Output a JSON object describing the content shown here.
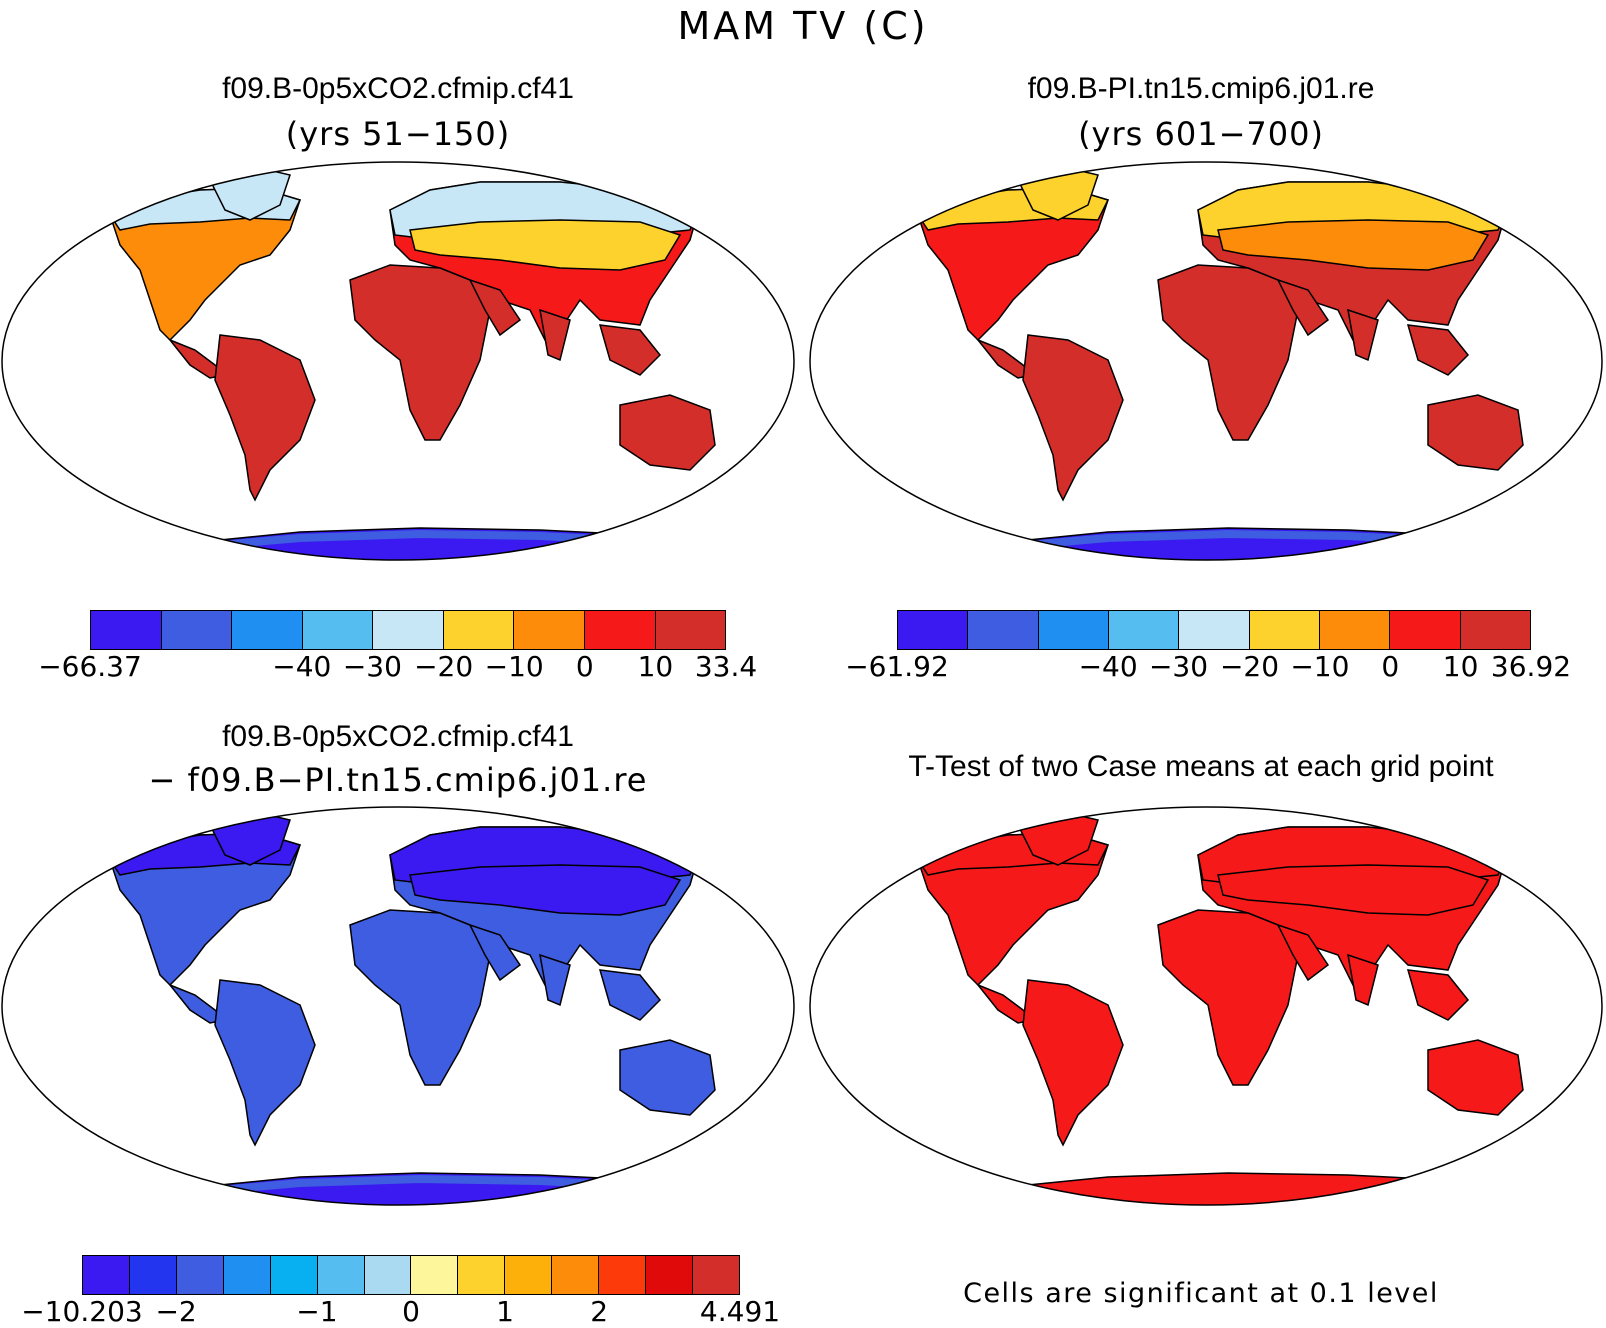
{
  "title": "MAM TV (C)",
  "panels": [
    {
      "id": "p1",
      "title": "f09.B-0p5xCO2.cfmip.cf41",
      "subtitle": "(yrs 51−150)",
      "colorbar": {
        "colors": [
          "#3a1af0",
          "#3f5de0",
          "#1f8ff2",
          "#55bdf0",
          "#c7e6f6",
          "#fdd22c",
          "#fd8c0a",
          "#f5191a",
          "#d42e2a"
        ],
        "labels": [
          "−66.37",
          "−40",
          "−30",
          "−20",
          "−10",
          "0",
          "10",
          "33.4"
        ]
      },
      "fills": {
        "north": "#c7e6f6",
        "mid": "#fdd22c",
        "warm": "#fd8c0a",
        "hot": "#f5191a",
        "tropic": "#d42e2a",
        "antarctica": "#3a1af0",
        "antarctica_edge": "#3f5de0"
      }
    },
    {
      "id": "p2",
      "title": "f09.B-PI.tn15.cmip6.j01.re",
      "subtitle": "(yrs 601−700)",
      "colorbar": {
        "colors": [
          "#3a1af0",
          "#3f5de0",
          "#1f8ff2",
          "#55bdf0",
          "#c7e6f6",
          "#fdd22c",
          "#fd8c0a",
          "#f5191a",
          "#d42e2a"
        ],
        "labels": [
          "−61.92",
          "−40",
          "−30",
          "−20",
          "−10",
          "0",
          "10",
          "36.92"
        ]
      },
      "fills": {
        "north": "#fdd22c",
        "mid": "#fd8c0a",
        "warm": "#f5191a",
        "hot": "#d42e2a",
        "tropic": "#d42e2a",
        "antarctica": "#3a1af0",
        "antarctica_edge": "#3f5de0"
      }
    },
    {
      "id": "p3",
      "title": "f09.B-0p5xCO2.cfmip.cf41",
      "subtitle": "− f09.B−PI.tn15.cmip6.j01.re",
      "colorbar": {
        "colors": [
          "#3a1af0",
          "#2335ee",
          "#3f5de0",
          "#1f8ff2",
          "#08b0f2",
          "#55bdf0",
          "#a9daf2",
          "#fdf69a",
          "#fdd22c",
          "#fdb00a",
          "#fd8c0a",
          "#fd3a0a",
          "#e00a0a",
          "#d42e2a"
        ],
        "labels": [
          "−10.203",
          "−2",
          "−1",
          "0",
          "1",
          "2",
          "4.491"
        ]
      },
      "fills": {
        "north": "#3a1af0",
        "mid": "#3a1af0",
        "warm": "#3f5de0",
        "hot": "#3f5de0",
        "tropic": "#3f5de0",
        "antarctica": "#3a1af0",
        "antarctica_edge": "#3f5de0"
      }
    },
    {
      "id": "p4",
      "title": "T-Test of two Case means at each grid point",
      "note": "Cells are significant at 0.1 level",
      "fills": {
        "north": "#f5191a",
        "mid": "#f5191a",
        "warm": "#f5191a",
        "hot": "#f5191a",
        "tropic": "#f5191a",
        "antarctica": "#f5191a",
        "antarctica_edge": "#f5191a"
      }
    }
  ]
}
